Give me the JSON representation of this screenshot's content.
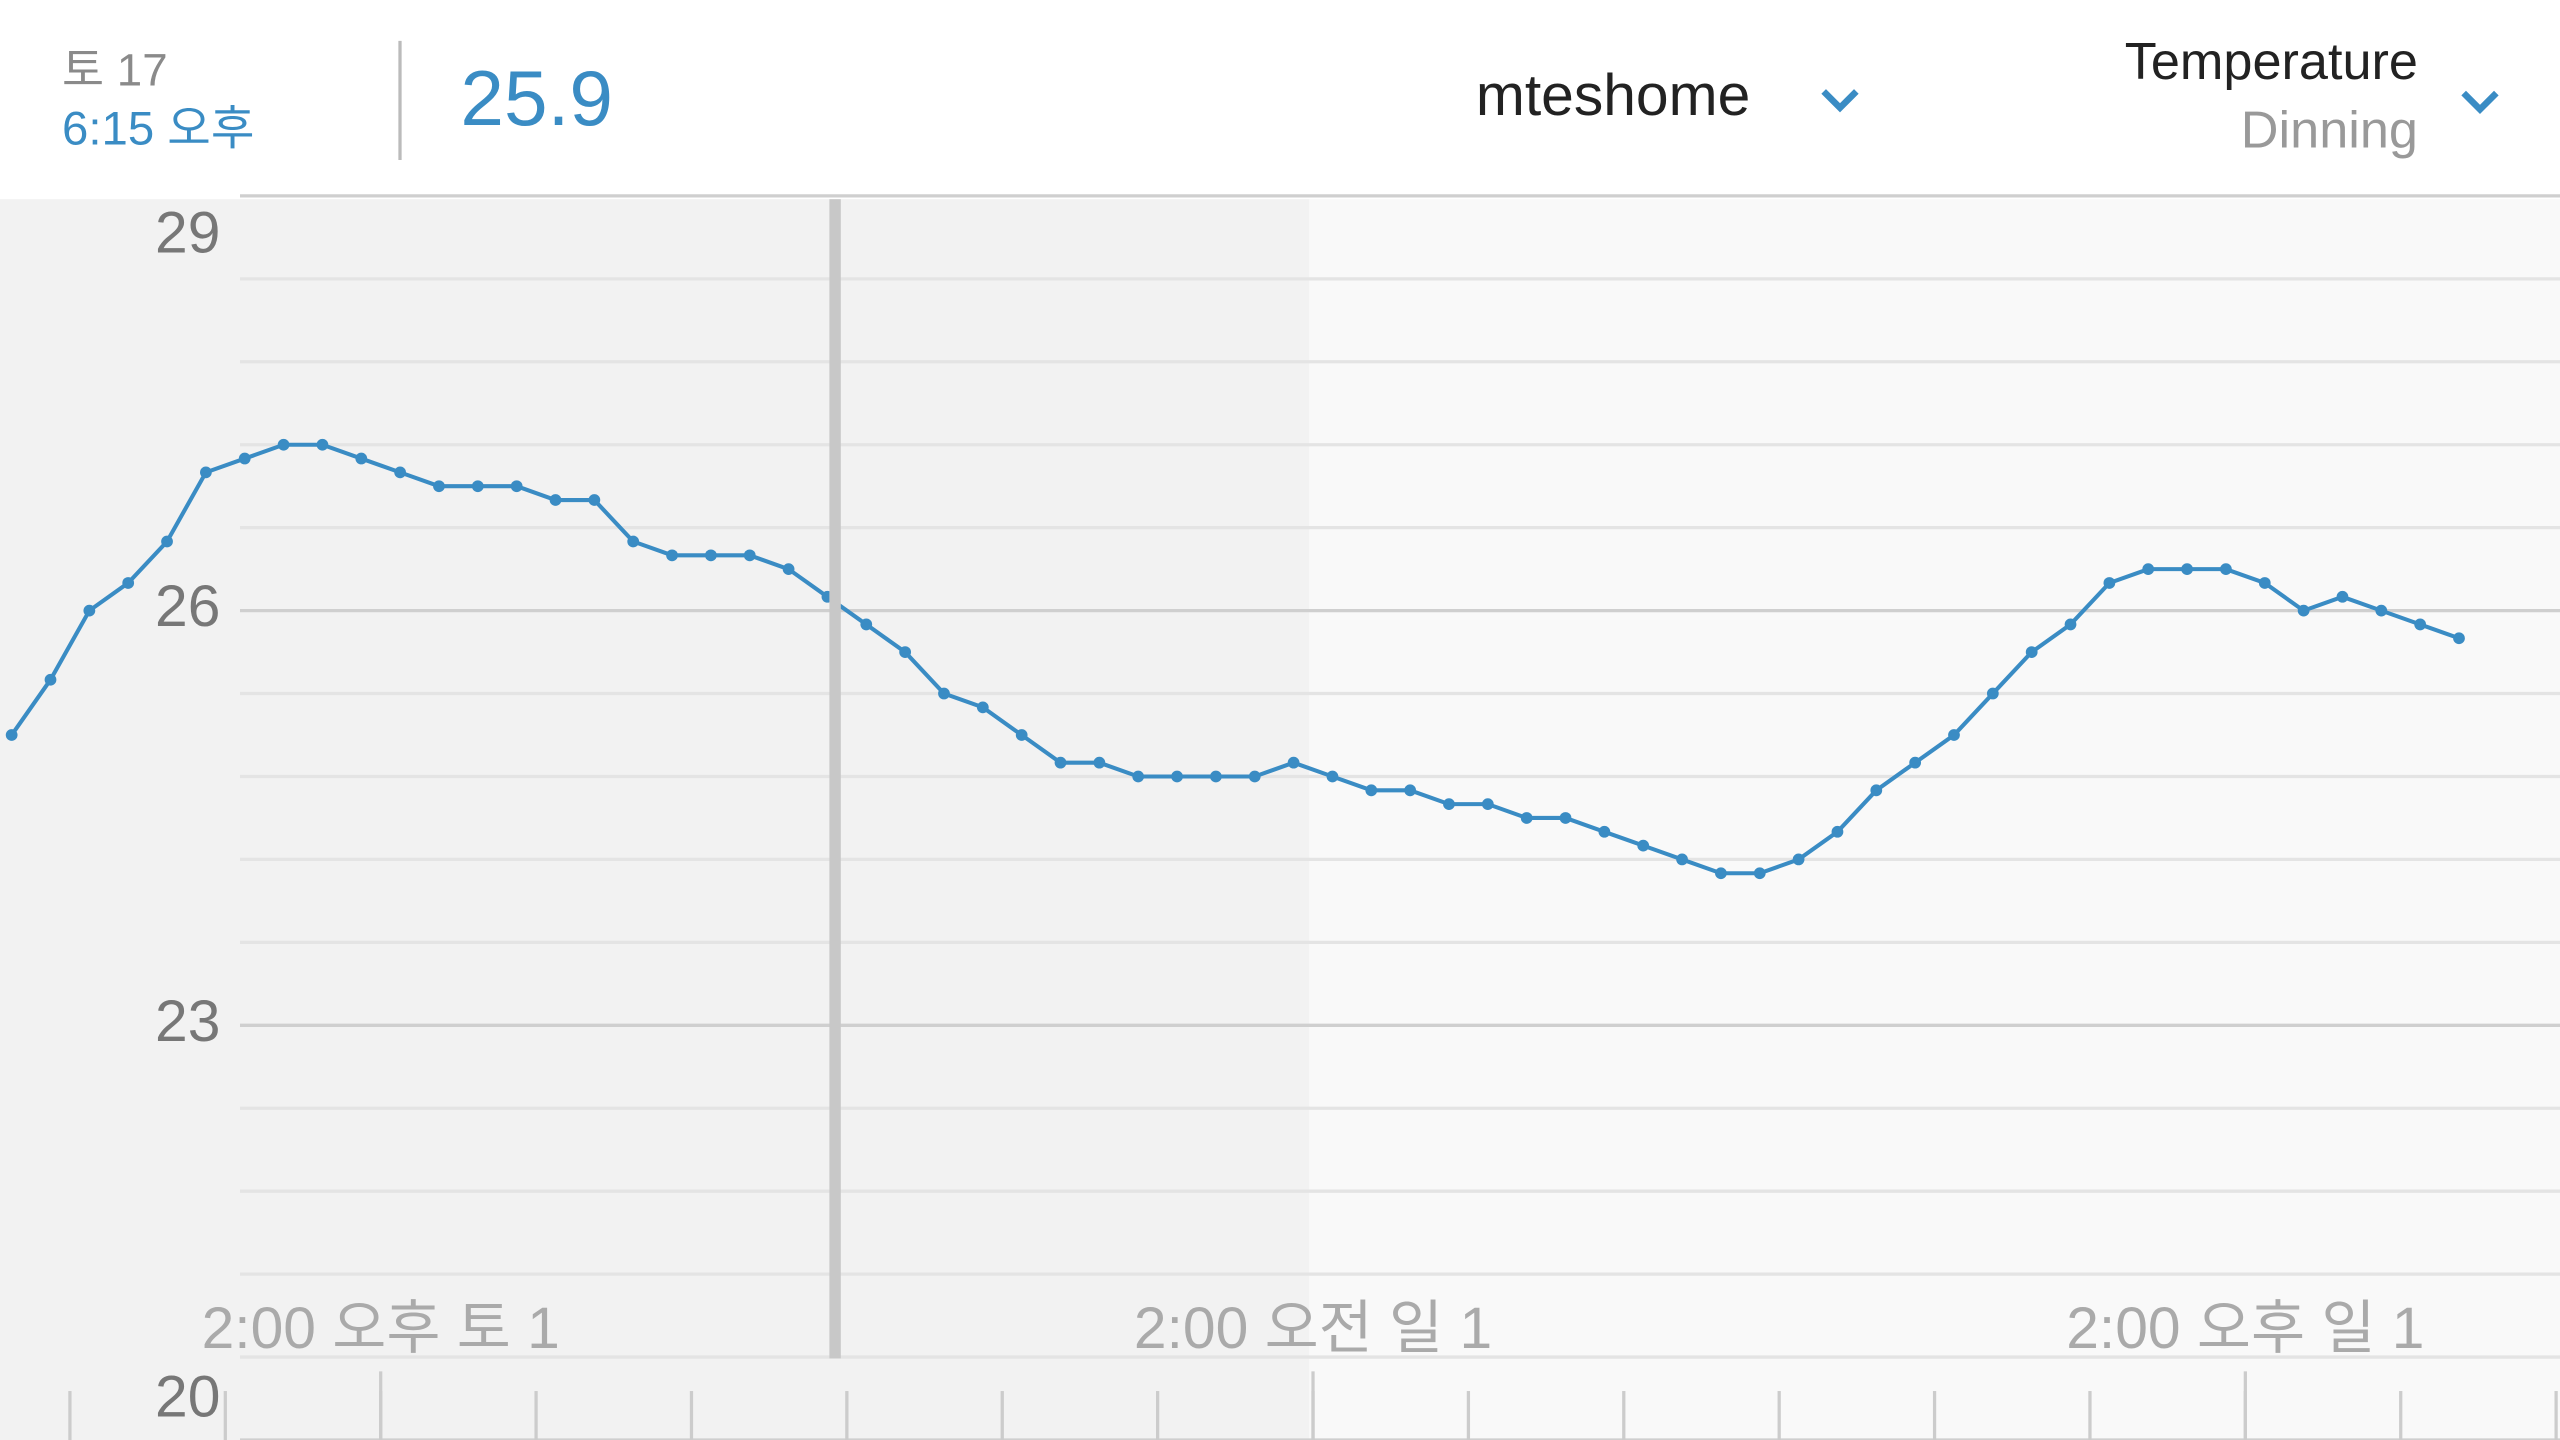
{
  "header": {
    "date": "토 17",
    "time": "6:15 오후",
    "current_value": "25.9",
    "home": "mteshome",
    "sensor": {
      "type": "Temperature",
      "room": "Dinning"
    }
  },
  "chart_data": {
    "type": "line",
    "x": [
      9.25,
      9.75,
      10.25,
      10.75,
      11.25,
      11.75,
      12.25,
      12.75,
      13.25,
      13.75,
      14.25,
      14.75,
      15.25,
      15.75,
      16.25,
      16.75,
      17.25,
      17.75,
      18.25,
      18.75,
      19.25,
      19.75,
      20.25,
      20.75,
      21.25,
      21.75,
      22.25,
      22.75,
      23.25,
      23.75,
      24.25,
      24.75,
      25.25,
      25.75,
      26.25,
      26.75,
      27.25,
      27.75,
      28.25,
      28.75,
      29.25,
      29.75,
      30.25,
      30.75,
      31.25,
      31.75,
      32.25,
      32.75,
      33.25,
      33.75,
      34.25,
      34.75,
      35.25,
      35.75,
      36.25,
      36.75,
      37.25,
      37.75,
      38.25,
      38.75,
      39.25,
      39.75,
      40.25,
      40.75
    ],
    "series": [
      {
        "color": "#3a8cc4",
        "values": [
          25.1,
          25.5,
          26.0,
          26.2,
          26.5,
          27.0,
          27.1,
          27.2,
          27.2,
          27.1,
          27.0,
          26.9,
          26.9,
          26.9,
          26.8,
          26.8,
          26.5,
          26.4,
          26.4,
          26.4,
          26.3,
          26.1,
          25.9,
          25.7,
          25.4,
          25.3,
          25.1,
          24.9,
          24.9,
          24.8,
          24.8,
          24.8,
          24.8,
          24.9,
          24.8,
          24.7,
          24.7,
          24.6,
          24.6,
          24.5,
          24.5,
          24.4,
          24.3,
          24.2,
          24.1,
          24.1,
          24.2,
          24.4,
          24.7,
          24.9,
          25.1,
          25.4,
          25.7,
          25.9,
          26.2,
          26.3,
          26.3,
          26.3,
          26.2,
          26.0,
          26.1,
          26.0,
          25.9,
          25.8
        ]
      }
    ],
    "xlim": [
      9.1,
      42.05
    ],
    "xticks": [
      {
        "value": 14,
        "label": "2:00 오후 토 1"
      },
      {
        "value": 26,
        "label": "2:00 오전 일 1"
      },
      {
        "value": 38,
        "label": "2:00 오후 일 1"
      }
    ],
    "minor_xticks": [
      10,
      12,
      14,
      16,
      18,
      20,
      22,
      24,
      26,
      28,
      30,
      32,
      34,
      36,
      38,
      40,
      42
    ],
    "ylim": [
      20,
      29
    ],
    "yticks": [
      20,
      23,
      26,
      29
    ],
    "minor_yticks": [
      20.6,
      21.2,
      21.8,
      22.4,
      23.6,
      24.2,
      24.8,
      25.4,
      26.6,
      27.2,
      27.8,
      28.4
    ],
    "grid": true
  }
}
